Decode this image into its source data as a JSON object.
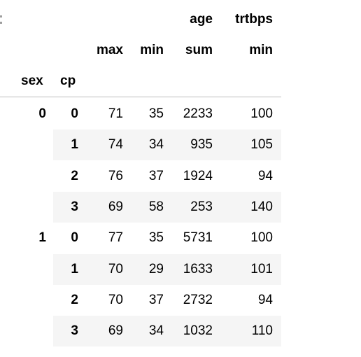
{
  "table": {
    "header_level0": [
      "age",
      "trtbps"
    ],
    "header_level1": [
      "max",
      "min",
      "sum",
      "min"
    ],
    "index_names": [
      "sex",
      "cp"
    ],
    "rows": [
      {
        "sex": "0",
        "cp": "0",
        "max": "71",
        "min": "35",
        "sum": "2233",
        "trtbps_min": "100"
      },
      {
        "sex": "",
        "cp": "1",
        "max": "74",
        "min": "34",
        "sum": "935",
        "trtbps_min": "105"
      },
      {
        "sex": "",
        "cp": "2",
        "max": "76",
        "min": "37",
        "sum": "1924",
        "trtbps_min": "94"
      },
      {
        "sex": "",
        "cp": "3",
        "max": "69",
        "min": "58",
        "sum": "253",
        "trtbps_min": "140"
      },
      {
        "sex": "1",
        "cp": "0",
        "max": "77",
        "min": "35",
        "sum": "5731",
        "trtbps_min": "100"
      },
      {
        "sex": "",
        "cp": "1",
        "max": "70",
        "min": "29",
        "sum": "1633",
        "trtbps_min": "101"
      },
      {
        "sex": "",
        "cp": "2",
        "max": "70",
        "min": "37",
        "sum": "2732",
        "trtbps_min": "94"
      },
      {
        "sex": "",
        "cp": "3",
        "max": "69",
        "min": "34",
        "sum": "1032",
        "trtbps_min": "110"
      }
    ]
  },
  "colors": {
    "stripe": "#f5f5f5",
    "rule": "#bdbdbd",
    "text": "#000000"
  }
}
